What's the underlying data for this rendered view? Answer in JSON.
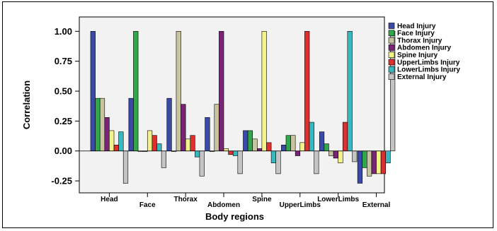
{
  "chart_data": {
    "type": "bar",
    "title": "",
    "xlabel": "Body regions",
    "ylabel": "Correlation",
    "ylim": [
      -0.35,
      1.12
    ],
    "yticks": [
      "1.00",
      "0.75",
      "0.50",
      "0.25",
      "0.00",
      "-0.25"
    ],
    "ytick_values": [
      1.0,
      0.75,
      0.5,
      0.25,
      0.0,
      -0.25
    ],
    "grid": false,
    "legend_position": "top-right",
    "categories": [
      "Head",
      "Face",
      "Thorax",
      "Abdomen",
      "Spine",
      "UpperLimbs",
      "LowerLimbs",
      "External"
    ],
    "series": [
      {
        "name": "Head Injury",
        "color": "#3a4aa6",
        "values": [
          1.0,
          0.44,
          0.44,
          0.28,
          0.17,
          0.05,
          0.16,
          -0.27
        ]
      },
      {
        "name": "Face Injury",
        "color": "#2ea84a",
        "values": [
          0.44,
          1.0,
          0.0,
          0.0,
          0.17,
          0.13,
          0.06,
          -0.14
        ]
      },
      {
        "name": "Thorax Injury",
        "color": "#c9c4a0",
        "values": [
          0.44,
          0.0,
          1.0,
          0.39,
          0.1,
          0.13,
          -0.04,
          -0.21
        ]
      },
      {
        "name": "Abdomen Injury",
        "color": "#7a2478",
        "values": [
          0.28,
          0.0,
          0.39,
          1.0,
          0.02,
          -0.04,
          -0.06,
          -0.19
        ]
      },
      {
        "name": "Spine Injury",
        "color": "#f3f38a",
        "values": [
          0.17,
          0.17,
          0.1,
          0.02,
          1.0,
          0.07,
          -0.1,
          -0.19
        ]
      },
      {
        "name": "UpperLimbs Injury",
        "color": "#e0302e",
        "values": [
          0.05,
          0.13,
          0.13,
          -0.03,
          0.07,
          1.0,
          0.24,
          -0.19
        ]
      },
      {
        "name": "LowerLimbs Injury",
        "color": "#3ab8c0",
        "values": [
          0.16,
          0.06,
          -0.05,
          -0.04,
          -0.1,
          0.24,
          1.0,
          -0.1
        ]
      },
      {
        "name": "External Injury",
        "color": "#c4c4c4",
        "values": [
          -0.27,
          -0.14,
          -0.21,
          -0.19,
          -0.19,
          -0.19,
          -0.09,
          1.0
        ]
      }
    ],
    "plot_background": "#f2f2f2"
  }
}
